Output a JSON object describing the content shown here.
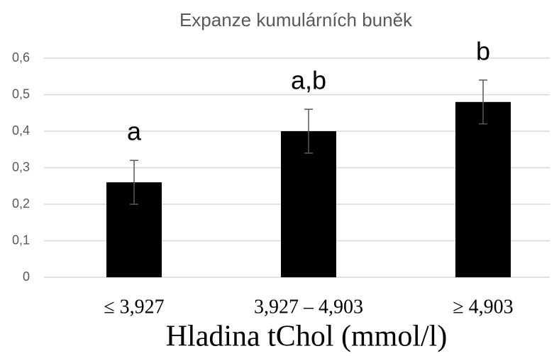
{
  "chart_data": {
    "type": "bar",
    "title": "Expanze kumulárních buněk",
    "x_label": "Hladina tChol (mmol/l)",
    "categories": [
      "≤ 3,927",
      "3,927 – 4,903",
      "≥ 4,903"
    ],
    "values": [
      0.26,
      0.4,
      0.48
    ],
    "errors": [
      0.06,
      0.06,
      0.06
    ],
    "annotations": [
      "a",
      "a,b",
      "b"
    ],
    "color": "#000000",
    "ylim": [
      0,
      0.6
    ],
    "yticks": [
      0,
      {
        "value": 0.1,
        "label": "0,1"
      },
      {
        "value": 0.2,
        "label": "0,2"
      },
      {
        "value": 0.3,
        "label": "0,3"
      },
      {
        "value": 0.4,
        "label": "0,4"
      },
      {
        "value": 0.5,
        "label": "0,5"
      },
      {
        "value": 0.6,
        "label": "0,6"
      }
    ],
    "grid": true
  }
}
